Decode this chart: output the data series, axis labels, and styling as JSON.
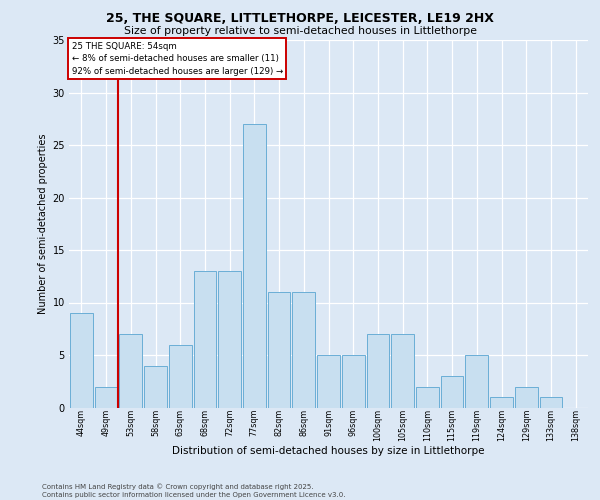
{
  "title1": "25, THE SQUARE, LITTLETHORPE, LEICESTER, LE19 2HX",
  "title2": "Size of property relative to semi-detached houses in Littlethorpe",
  "xlabel": "Distribution of semi-detached houses by size in Littlethorpe",
  "ylabel": "Number of semi-detached properties",
  "categories": [
    "44sqm",
    "49sqm",
    "53sqm",
    "58sqm",
    "63sqm",
    "68sqm",
    "72sqm",
    "77sqm",
    "82sqm",
    "86sqm",
    "91sqm",
    "96sqm",
    "100sqm",
    "105sqm",
    "110sqm",
    "115sqm",
    "119sqm",
    "124sqm",
    "129sqm",
    "133sqm",
    "138sqm"
  ],
  "values": [
    9,
    2,
    7,
    4,
    6,
    13,
    13,
    27,
    11,
    11,
    5,
    5,
    7,
    7,
    2,
    3,
    5,
    1,
    2,
    1,
    0
  ],
  "bar_color": "#c8dff0",
  "bar_edge_color": "#6aaed6",
  "vline_color": "#cc0000",
  "vline_x": 1.5,
  "annotation_text": "25 THE SQUARE: 54sqm\n← 8% of semi-detached houses are smaller (11)\n92% of semi-detached houses are larger (129) →",
  "annotation_box_color": "#ffffff",
  "annotation_box_edge": "#cc0000",
  "ylim_max": 35,
  "yticks": [
    0,
    5,
    10,
    15,
    20,
    25,
    30,
    35
  ],
  "bg_color": "#dce8f5",
  "footer1": "Contains HM Land Registry data © Crown copyright and database right 2025.",
  "footer2": "Contains public sector information licensed under the Open Government Licence v3.0."
}
